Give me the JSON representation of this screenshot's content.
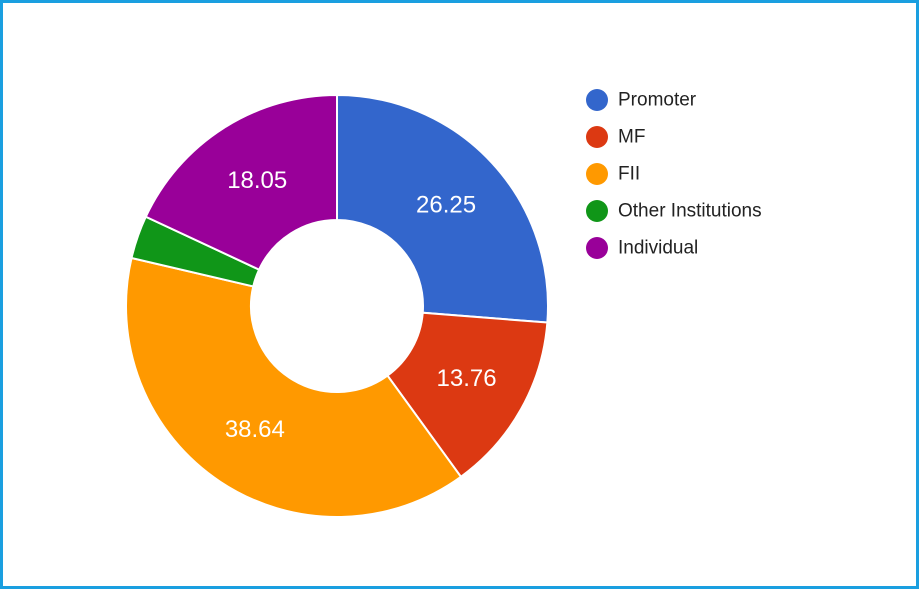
{
  "chart_data": {
    "type": "pie",
    "donut": true,
    "legend_position": "right",
    "categories": [
      "Promoter",
      "MF",
      "FII",
      "Other Institutions",
      "Individual"
    ],
    "values": [
      26.25,
      13.76,
      38.64,
      3.3,
      18.05
    ],
    "labels": [
      "26.25",
      "13.76",
      "38.64",
      "",
      "18.05"
    ],
    "colors": [
      "#3366cc",
      "#dc3912",
      "#ff9900",
      "#109618",
      "#990099"
    ]
  }
}
